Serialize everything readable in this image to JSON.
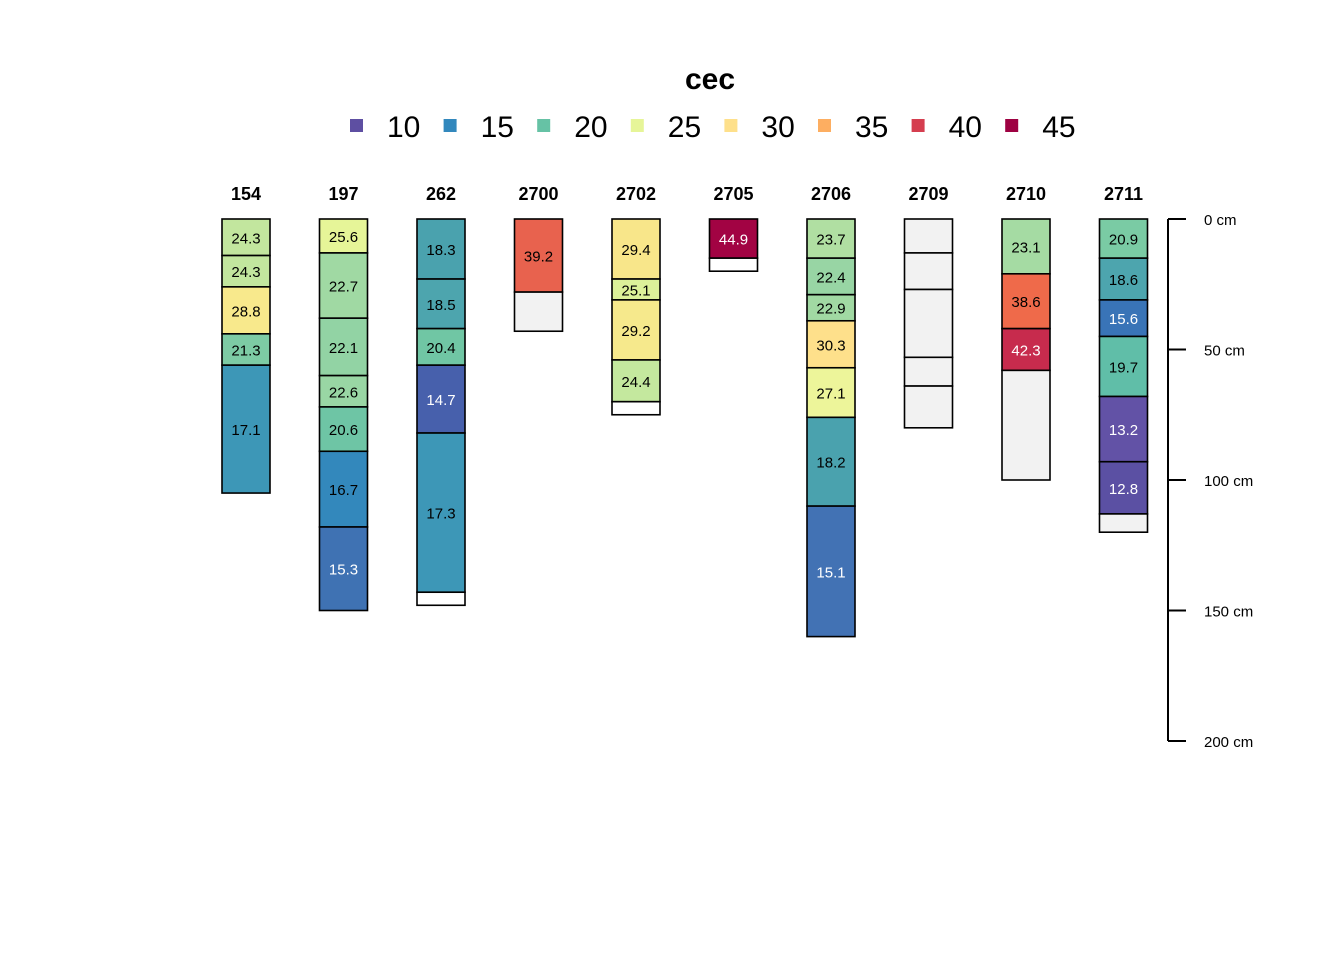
{
  "chart_data": {
    "type": "soil-profile",
    "title": "cec",
    "legend": {
      "placement": "top-center",
      "entries": [
        {
          "label": "10",
          "color": "#5E4FA2"
        },
        {
          "label": "15",
          "color": "#3288BD"
        },
        {
          "label": "20",
          "color": "#66C2A5"
        },
        {
          "label": "25",
          "color": "#E6F598"
        },
        {
          "label": "30",
          "color": "#FEE08B"
        },
        {
          "label": "35",
          "color": "#FDAE61"
        },
        {
          "label": "40",
          "color": "#D53E4F"
        },
        {
          "label": "45",
          "color": "#9E0142"
        }
      ]
    },
    "depth_axis": {
      "range": [
        0,
        200
      ],
      "ticks": [
        "0 cm",
        "50 cm",
        "100 cm",
        "150 cm",
        "200 cm"
      ],
      "tick_values": [
        0,
        50,
        100,
        150,
        200
      ]
    },
    "profiles": [
      {
        "id": "154",
        "horizons": [
          {
            "top": 0,
            "bottom": 14,
            "value": "24.3",
            "color": "#C2E69E"
          },
          {
            "top": 14,
            "bottom": 26,
            "value": "24.3",
            "color": "#C2E69E"
          },
          {
            "top": 26,
            "bottom": 44,
            "value": "28.8",
            "color": "#F8E98C"
          },
          {
            "top": 44,
            "bottom": 56,
            "value": "21.3",
            "color": "#7DCBA4"
          },
          {
            "top": 56,
            "bottom": 105,
            "value": "17.1",
            "color": "#3D97B7"
          }
        ]
      },
      {
        "id": "197",
        "horizons": [
          {
            "top": 0,
            "bottom": 13,
            "value": "25.6",
            "color": "#E6F598"
          },
          {
            "top": 13,
            "bottom": 38,
            "value": "22.7",
            "color": "#A0D9A3"
          },
          {
            "top": 38,
            "bottom": 60,
            "value": "22.1",
            "color": "#92D3A4"
          },
          {
            "top": 60,
            "bottom": 72,
            "value": "22.6",
            "color": "#99D6A4"
          },
          {
            "top": 72,
            "bottom": 89,
            "value": "20.6",
            "color": "#6EC5A5"
          },
          {
            "top": 89,
            "bottom": 118,
            "value": "16.7",
            "color": "#3388BC"
          },
          {
            "top": 118,
            "bottom": 150,
            "value": "15.3",
            "color": "#3F72B3"
          }
        ]
      },
      {
        "id": "262",
        "horizons": [
          {
            "top": 0,
            "bottom": 23,
            "value": "18.3",
            "color": "#4AA2AE"
          },
          {
            "top": 23,
            "bottom": 42,
            "value": "18.5",
            "color": "#4DA5AE"
          },
          {
            "top": 42,
            "bottom": 56,
            "value": "20.4",
            "color": "#70C6A4"
          },
          {
            "top": 56,
            "bottom": 82,
            "value": "14.7",
            "color": "#4760AC"
          },
          {
            "top": 82,
            "bottom": 143,
            "value": "17.3",
            "color": "#3D97B7"
          },
          {
            "top": 143,
            "bottom": 148,
            "value": "",
            "color": "#FFFFFF"
          }
        ]
      },
      {
        "id": "2700",
        "horizons": [
          {
            "top": 0,
            "bottom": 28,
            "value": "39.2",
            "color": "#E8624E"
          },
          {
            "top": 28,
            "bottom": 43,
            "value": "",
            "color": "#F2F2F2"
          }
        ]
      },
      {
        "id": "2702",
        "horizons": [
          {
            "top": 0,
            "bottom": 23,
            "value": "29.4",
            "color": "#F8E68A"
          },
          {
            "top": 23,
            "bottom": 31,
            "value": "25.1",
            "color": "#DCF199"
          },
          {
            "top": 31,
            "bottom": 54,
            "value": "29.2",
            "color": "#F6E98C"
          },
          {
            "top": 54,
            "bottom": 70,
            "value": "24.4",
            "color": "#C4E89E"
          },
          {
            "top": 70,
            "bottom": 75,
            "value": "",
            "color": "#FFFFFF"
          }
        ]
      },
      {
        "id": "2705",
        "horizons": [
          {
            "top": 0,
            "bottom": 15,
            "value": "44.9",
            "color": "#A20343"
          },
          {
            "top": 15,
            "bottom": 20,
            "value": "",
            "color": "#FFFFFF"
          }
        ]
      },
      {
        "id": "2706",
        "horizons": [
          {
            "top": 0,
            "bottom": 15,
            "value": "23.7",
            "color": "#B0DFA2"
          },
          {
            "top": 15,
            "bottom": 29,
            "value": "22.4",
            "color": "#98D5A4"
          },
          {
            "top": 29,
            "bottom": 39,
            "value": "22.9",
            "color": "#A1D9A3"
          },
          {
            "top": 39,
            "bottom": 57,
            "value": "30.3",
            "color": "#FEE08B"
          },
          {
            "top": 57,
            "bottom": 76,
            "value": "27.1",
            "color": "#EDF59A"
          },
          {
            "top": 76,
            "bottom": 110,
            "value": "18.2",
            "color": "#4AA2AE"
          },
          {
            "top": 110,
            "bottom": 160,
            "value": "15.1",
            "color": "#4272B4"
          }
        ]
      },
      {
        "id": "2709",
        "horizons": [
          {
            "top": 0,
            "bottom": 13,
            "value": "",
            "color": "#F2F2F2"
          },
          {
            "top": 13,
            "bottom": 27,
            "value": "",
            "color": "#F2F2F2"
          },
          {
            "top": 27,
            "bottom": 53,
            "value": "",
            "color": "#F2F2F2"
          },
          {
            "top": 53,
            "bottom": 64,
            "value": "",
            "color": "#F2F2F2"
          },
          {
            "top": 64,
            "bottom": 80,
            "value": "",
            "color": "#F2F2F2"
          }
        ]
      },
      {
        "id": "2710",
        "horizons": [
          {
            "top": 0,
            "bottom": 21,
            "value": "23.1",
            "color": "#A5DBA3"
          },
          {
            "top": 21,
            "bottom": 42,
            "value": "38.6",
            "color": "#EF6A4A"
          },
          {
            "top": 42,
            "bottom": 58,
            "value": "42.3",
            "color": "#C72B4D"
          },
          {
            "top": 58,
            "bottom": 100,
            "value": "",
            "color": "#F2F2F2"
          }
        ]
      },
      {
        "id": "2711",
        "horizons": [
          {
            "top": 0,
            "bottom": 15,
            "value": "20.9",
            "color": "#7ACBA4"
          },
          {
            "top": 15,
            "bottom": 31,
            "value": "18.6",
            "color": "#4DA5AE"
          },
          {
            "top": 31,
            "bottom": 45,
            "value": "15.6",
            "color": "#3974B7"
          },
          {
            "top": 45,
            "bottom": 68,
            "value": "19.7",
            "color": "#60BEA8"
          },
          {
            "top": 68,
            "bottom": 93,
            "value": "13.2",
            "color": "#6252A6"
          },
          {
            "top": 93,
            "bottom": 113,
            "value": "12.8",
            "color": "#5B50A3"
          },
          {
            "top": 113,
            "bottom": 120,
            "value": "",
            "color": "#F2F2F2"
          }
        ]
      }
    ]
  }
}
